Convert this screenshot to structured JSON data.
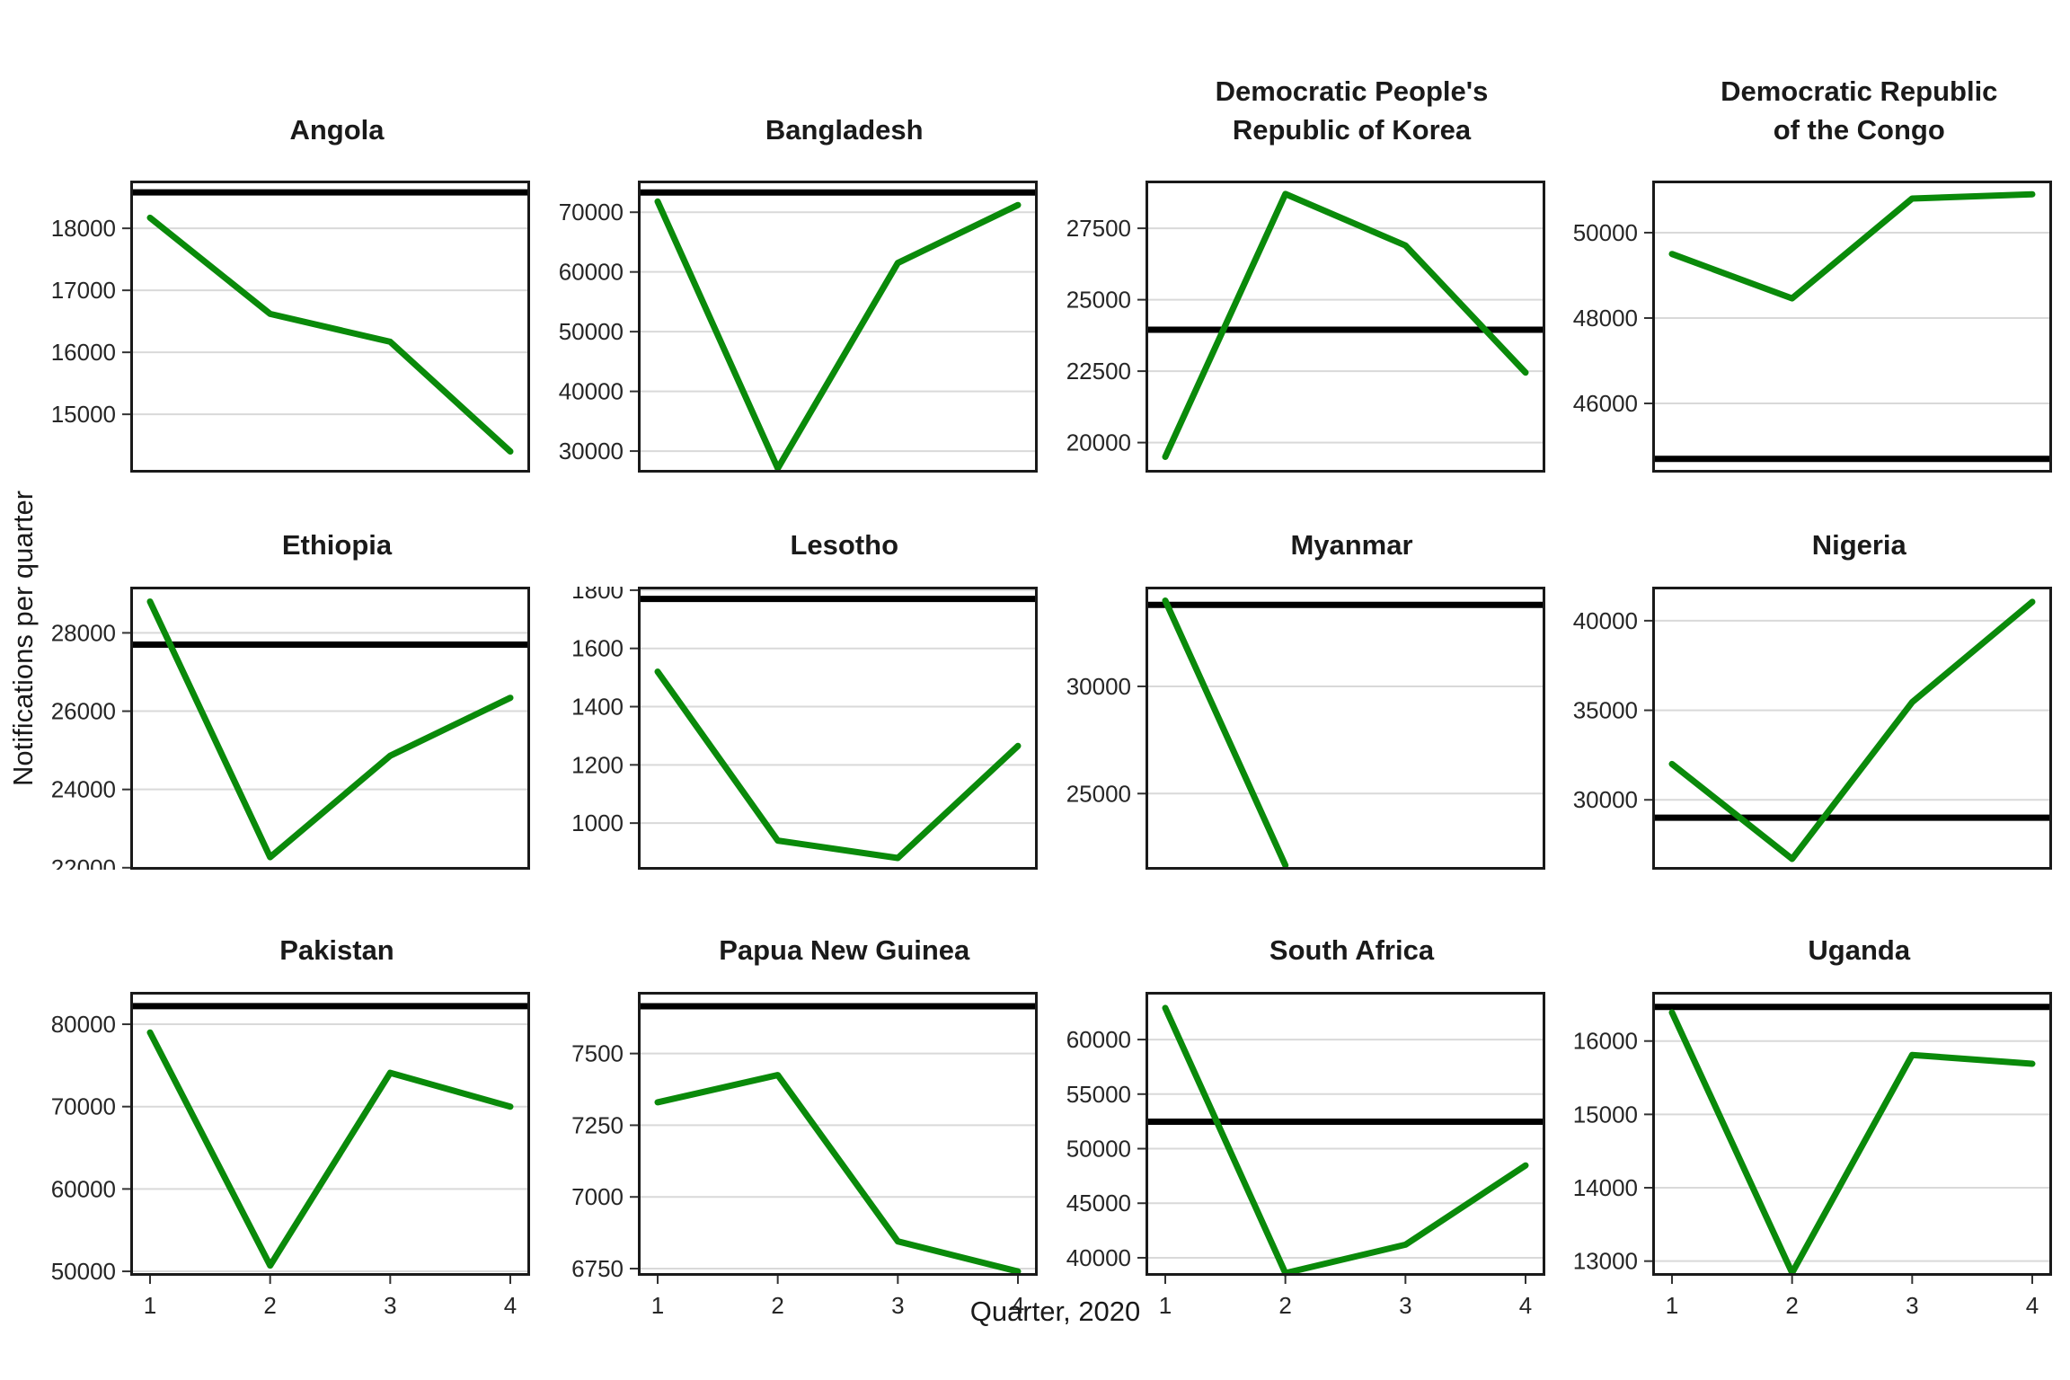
{
  "figure": {
    "x_axis_label": "Quarter, 2020",
    "y_axis_label": "Notifications per quarter",
    "colors": {
      "line": "#0a8a0a",
      "reference_line": "#000000",
      "gridline": "#d9d9d9",
      "panel_border": "#1a1a1a",
      "tick_text": "#262626"
    }
  },
  "chart_data": [
    {
      "type": "line",
      "title": "Angola",
      "title_lines": [
        "Angola"
      ],
      "x": [
        1,
        2,
        3,
        4
      ],
      "values": [
        18170,
        16620,
        16170,
        14400
      ],
      "reference_line": 18580,
      "ylim": [
        14060,
        18770
      ],
      "y_ticks": [
        15000,
        16000,
        17000,
        18000
      ],
      "x_ticks": [
        1,
        2,
        3,
        4
      ]
    },
    {
      "type": "line",
      "title": "Bangladesh",
      "title_lines": [
        "Bangladesh"
      ],
      "x": [
        1,
        2,
        3,
        4
      ],
      "values": [
        71800,
        27100,
        61500,
        71200
      ],
      "reference_line": 73300,
      "ylim": [
        26400,
        75300
      ],
      "y_ticks": [
        30000,
        40000,
        50000,
        60000,
        70000
      ],
      "x_ticks": [
        1,
        2,
        3,
        4
      ]
    },
    {
      "type": "line",
      "title": "Democratic People's Republic of Korea",
      "title_lines": [
        "Democratic People's",
        "Republic of Korea"
      ],
      "x": [
        1,
        2,
        3,
        4
      ],
      "values": [
        19500,
        28700,
        26900,
        22450
      ],
      "reference_line": 23950,
      "ylim": [
        18950,
        29170
      ],
      "y_ticks": [
        20000,
        22500,
        25000,
        27500
      ],
      "x_ticks": [
        1,
        2,
        3,
        4
      ]
    },
    {
      "type": "line",
      "title": "Democratic Republic of the Congo",
      "title_lines": [
        "Democratic Republic",
        "of the Congo"
      ],
      "x": [
        1,
        2,
        3,
        4
      ],
      "values": [
        49500,
        48460,
        50800,
        50900
      ],
      "reference_line": 44700,
      "ylim": [
        44380,
        51220
      ],
      "y_ticks": [
        46000,
        48000,
        50000
      ],
      "x_ticks": [
        1,
        2,
        3,
        4
      ]
    },
    {
      "type": "line",
      "title": "Ethiopia",
      "title_lines": [
        "Ethiopia"
      ],
      "x": [
        1,
        2,
        3,
        4
      ],
      "values": [
        28800,
        22270,
        24860,
        26340
      ],
      "reference_line": 27700,
      "ylim": [
        21950,
        29180
      ],
      "y_ticks": [
        22000,
        24000,
        26000,
        28000
      ],
      "x_ticks": [
        1,
        2,
        3,
        4
      ]
    },
    {
      "type": "line",
      "title": "Lesotho",
      "title_lines": [
        "Lesotho"
      ],
      "x": [
        1,
        2,
        3,
        4
      ],
      "values": [
        1520,
        940,
        880,
        1265
      ],
      "reference_line": 1770,
      "ylim": [
        840,
        1812
      ],
      "y_ticks": [
        1000,
        1200,
        1400,
        1600,
        1800
      ],
      "x_ticks": [
        1,
        2,
        3,
        4
      ]
    },
    {
      "type": "line",
      "title": "Myanmar",
      "title_lines": [
        "Myanmar"
      ],
      "x": [
        1,
        2,
        3,
        4
      ],
      "values": [
        34000,
        21650,
        null,
        null
      ],
      "reference_line": 33800,
      "ylim": [
        21450,
        34650
      ],
      "y_ticks": [
        25000,
        30000
      ],
      "x_ticks": [
        1,
        2,
        3,
        4
      ]
    },
    {
      "type": "line",
      "title": "Nigeria",
      "title_lines": [
        "Nigeria"
      ],
      "x": [
        1,
        2,
        3,
        4
      ],
      "values": [
        32000,
        26700,
        35450,
        41050
      ],
      "reference_line": 29000,
      "ylim": [
        26100,
        41900
      ],
      "y_ticks": [
        30000,
        35000,
        40000
      ],
      "x_ticks": [
        1,
        2,
        3,
        4
      ]
    },
    {
      "type": "line",
      "title": "Pakistan",
      "title_lines": [
        "Pakistan"
      ],
      "x": [
        1,
        2,
        3,
        4
      ],
      "values": [
        79000,
        50700,
        74100,
        70000
      ],
      "reference_line": 82200,
      "ylim": [
        49460,
        83930
      ],
      "y_ticks": [
        50000,
        60000,
        70000,
        80000
      ],
      "x_ticks": [
        1,
        2,
        3,
        4
      ]
    },
    {
      "type": "line",
      "title": "Papua New Guinea",
      "title_lines": [
        "Papua New Guinea"
      ],
      "x": [
        1,
        2,
        3,
        4
      ],
      "values": [
        7330,
        7425,
        6845,
        6740
      ],
      "reference_line": 7665,
      "ylim": [
        6725,
        7715
      ],
      "y_ticks": [
        6750,
        7000,
        7250,
        7500
      ],
      "x_ticks": [
        1,
        2,
        3,
        4
      ]
    },
    {
      "type": "line",
      "title": "South Africa",
      "title_lines": [
        "South Africa"
      ],
      "x": [
        1,
        2,
        3,
        4
      ],
      "values": [
        62900,
        38600,
        41200,
        48460
      ],
      "reference_line": 52470,
      "ylim": [
        38350,
        64370
      ],
      "y_ticks": [
        40000,
        45000,
        50000,
        55000,
        60000
      ],
      "x_ticks": [
        1,
        2,
        3,
        4
      ]
    },
    {
      "type": "line",
      "title": "Uganda",
      "title_lines": [
        "Uganda"
      ],
      "x": [
        1,
        2,
        3,
        4
      ],
      "values": [
        16390,
        12840,
        15810,
        15690
      ],
      "reference_line": 16465,
      "ylim": [
        12800,
        16670
      ],
      "y_ticks": [
        13000,
        14000,
        15000,
        16000
      ],
      "x_ticks": [
        1,
        2,
        3,
        4
      ]
    }
  ]
}
